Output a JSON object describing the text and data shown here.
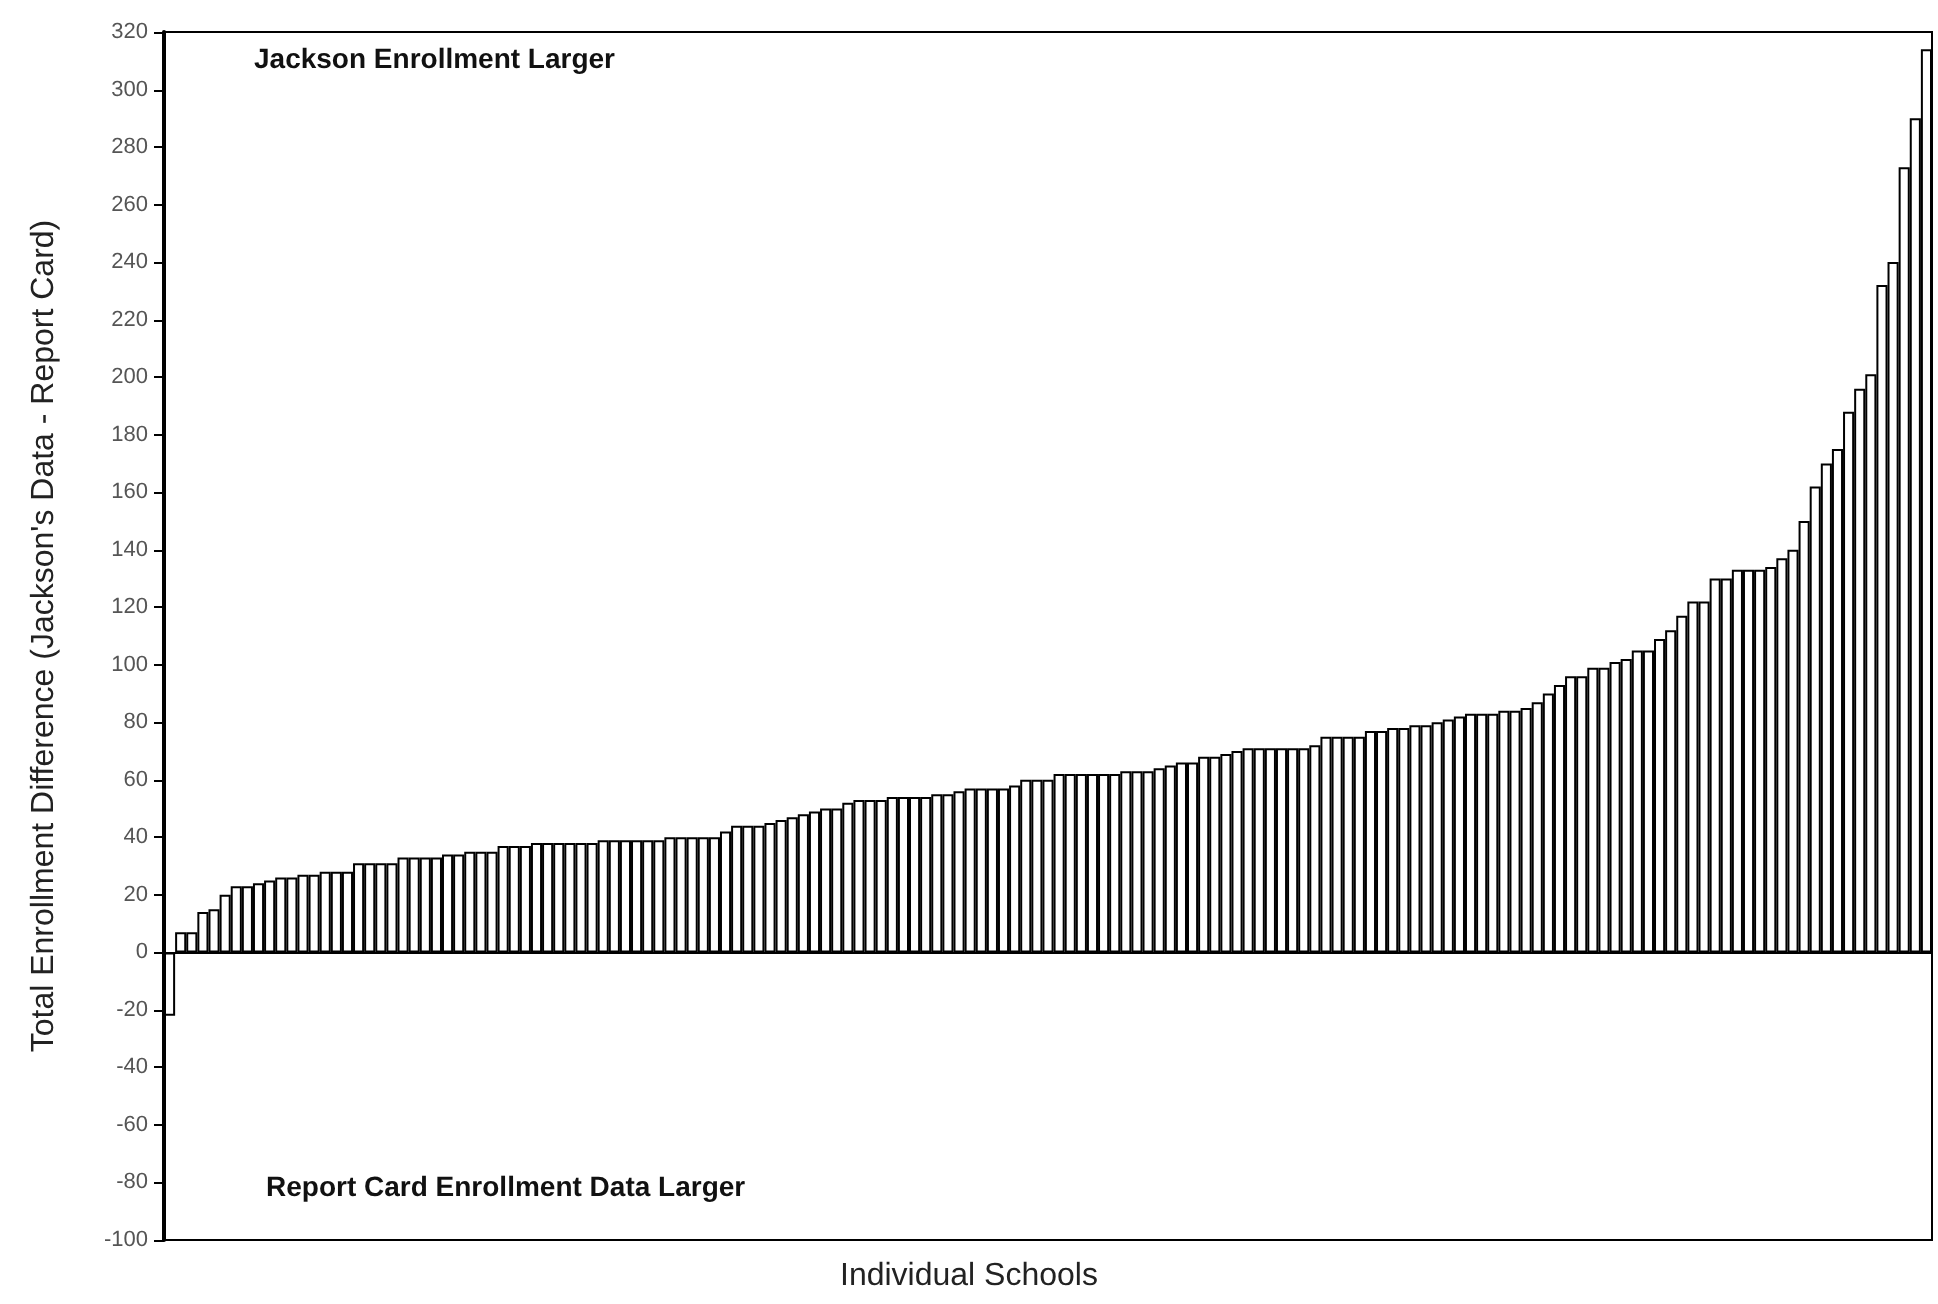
{
  "chart_data": {
    "type": "bar",
    "ylabel": "Total Enrollment Difference (Jackson's Data - Report Card)",
    "xlabel": "Individual Schools",
    "annotations": [
      "Jackson Enrollment Larger",
      "Report Card Enrollment Data Larger"
    ],
    "categories": [
      null,
      null,
      null,
      null,
      null,
      null,
      null,
      null,
      null,
      null,
      null,
      null,
      null,
      null,
      null,
      null,
      null,
      null,
      null,
      null,
      null,
      null,
      null,
      null,
      null,
      null,
      null,
      null,
      null,
      null,
      null,
      null,
      null,
      null,
      null,
      null,
      null,
      null,
      null,
      null,
      null,
      null,
      null,
      null,
      null,
      null,
      null,
      null,
      null,
      null,
      null,
      null,
      null,
      null,
      null,
      null,
      null,
      null,
      null,
      null,
      null,
      null,
      null,
      null,
      null,
      null,
      null,
      null,
      null,
      null,
      null,
      null,
      null,
      null,
      null,
      null,
      null,
      null,
      null,
      null,
      null,
      null,
      null,
      null,
      null,
      null,
      null,
      null,
      null,
      null,
      null,
      null,
      null,
      null,
      null,
      null,
      null,
      null,
      null,
      null,
      null,
      null,
      null,
      null,
      null,
      null,
      null,
      null,
      null,
      null,
      null,
      null,
      null,
      null,
      null,
      null,
      null,
      null,
      null,
      null,
      null,
      null,
      null,
      null,
      null,
      null,
      null,
      null,
      null,
      null,
      null,
      null,
      null,
      null,
      null,
      null,
      null,
      null,
      null,
      null,
      null,
      null,
      null,
      null,
      null,
      null,
      null,
      null,
      null,
      null,
      null,
      null,
      null,
      null,
      null,
      null,
      null,
      null,
      null
    ],
    "values": [
      -22,
      7,
      7,
      14,
      15,
      20,
      23,
      23,
      24,
      25,
      26,
      26,
      27,
      27,
      28,
      28,
      28,
      31,
      31,
      31,
      31,
      33,
      33,
      33,
      33,
      34,
      34,
      35,
      35,
      35,
      37,
      37,
      37,
      38,
      38,
      38,
      38,
      38,
      38,
      39,
      39,
      39,
      39,
      39,
      39,
      40,
      40,
      40,
      40,
      40,
      42,
      44,
      44,
      44,
      45,
      46,
      47,
      48,
      49,
      50,
      50,
      52,
      53,
      53,
      53,
      54,
      54,
      54,
      54,
      55,
      55,
      56,
      57,
      57,
      57,
      57,
      58,
      60,
      60,
      60,
      62,
      62,
      62,
      62,
      62,
      62,
      63,
      63,
      63,
      64,
      65,
      66,
      66,
      68,
      68,
      69,
      70,
      71,
      71,
      71,
      71,
      71,
      71,
      72,
      75,
      75,
      75,
      75,
      77,
      77,
      78,
      78,
      79,
      79,
      80,
      81,
      82,
      83,
      83,
      83,
      84,
      84,
      85,
      87,
      90,
      93,
      96,
      96,
      99,
      99,
      101,
      102,
      105,
      105,
      109,
      112,
      117,
      122,
      122,
      130,
      130,
      133,
      133,
      133,
      134,
      137,
      140,
      150,
      162,
      170,
      175,
      188,
      196,
      201,
      232,
      240,
      273,
      290,
      314
    ],
    "color": "#ffffff",
    "ylim": [
      -100,
      320
    ],
    "yticks": [
      -100,
      -80,
      -60,
      -40,
      -20,
      0,
      20,
      40,
      60,
      80,
      100,
      120,
      140,
      160,
      180,
      200,
      220,
      240,
      260,
      280,
      300,
      320
    ],
    "tick_labels": "y"
  }
}
